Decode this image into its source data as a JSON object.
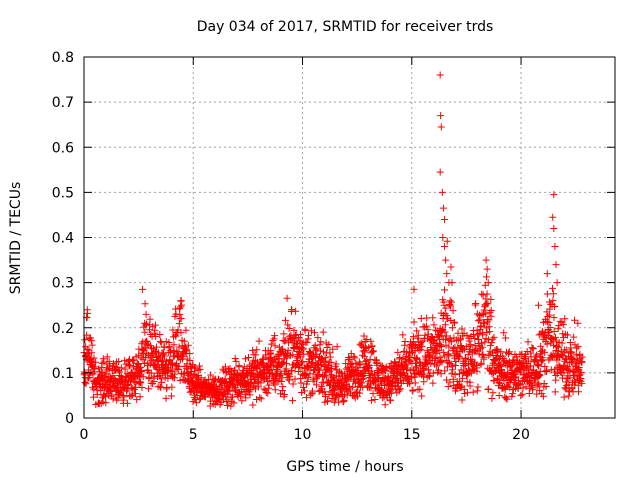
{
  "chart_data": {
    "type": "scatter",
    "title": "Day 034 of 2017, SRMTID for receiver trds",
    "xlabel": "GPS time / hours",
    "ylabel": "SRMTID / TECUs",
    "xlim": [
      0,
      24.3
    ],
    "ylim": [
      0,
      0.8
    ],
    "xticks": [
      0,
      5,
      10,
      15,
      20
    ],
    "xtick_labels": [
      "0",
      "5",
      "10",
      "15",
      "20"
    ],
    "yticks": [
      0,
      0.1,
      0.2,
      0.3,
      0.4,
      0.5,
      0.6,
      0.7,
      0.8
    ],
    "ytick_labels": [
      "0",
      "0.1",
      "0.2",
      "0.3",
      "0.4",
      "0.5",
      "0.6",
      "0.7",
      "0.8"
    ],
    "grid": true,
    "marker": "plus",
    "color": "#ff0000",
    "series": [
      {
        "name": "SRMTID",
        "baseline": [
          [
            0,
            0.13
          ],
          [
            0.1,
            0.15
          ],
          [
            0.3,
            0.12
          ],
          [
            0.5,
            0.08
          ],
          [
            1,
            0.08
          ],
          [
            2,
            0.08
          ],
          [
            2.6,
            0.1
          ],
          [
            2.8,
            0.17
          ],
          [
            3,
            0.13
          ],
          [
            3.5,
            0.11
          ],
          [
            4,
            0.12
          ],
          [
            4.4,
            0.18
          ],
          [
            4.7,
            0.12
          ],
          [
            5,
            0.07
          ],
          [
            6,
            0.06
          ],
          [
            7,
            0.08
          ],
          [
            8,
            0.1
          ],
          [
            9,
            0.12
          ],
          [
            9.6,
            0.15
          ],
          [
            10,
            0.13
          ],
          [
            11,
            0.1
          ],
          [
            11.7,
            0.07
          ],
          [
            12.5,
            0.1
          ],
          [
            13,
            0.13
          ],
          [
            13.5,
            0.08
          ],
          [
            14,
            0.08
          ],
          [
            14.5,
            0.1
          ],
          [
            15,
            0.12
          ],
          [
            15.5,
            0.14
          ],
          [
            16,
            0.15
          ],
          [
            16.3,
            0.16
          ],
          [
            16.8,
            0.2
          ],
          [
            17,
            0.13
          ],
          [
            17.5,
            0.12
          ],
          [
            18,
            0.16
          ],
          [
            18.4,
            0.22
          ],
          [
            18.7,
            0.14
          ],
          [
            19,
            0.1
          ],
          [
            20,
            0.1
          ],
          [
            20.7,
            0.11
          ],
          [
            21,
            0.15
          ],
          [
            21.4,
            0.18
          ],
          [
            21.8,
            0.13
          ],
          [
            22.5,
            0.11
          ],
          [
            22.8,
            0.1
          ]
        ],
        "spikes": [
          [
            0.15,
            0.24
          ],
          [
            2.68,
            0.285
          ],
          [
            4.45,
            0.26
          ],
          [
            9.5,
            0.24
          ],
          [
            15.1,
            0.285
          ],
          [
            16.3,
            0.76
          ],
          [
            16.32,
            0.67
          ],
          [
            16.35,
            0.645
          ],
          [
            16.3,
            0.545
          ],
          [
            16.4,
            0.5
          ],
          [
            16.45,
            0.465
          ],
          [
            16.5,
            0.44
          ],
          [
            16.42,
            0.4
          ],
          [
            16.5,
            0.38
          ],
          [
            16.55,
            0.35
          ],
          [
            16.6,
            0.32
          ],
          [
            16.7,
            0.3
          ],
          [
            18.4,
            0.35
          ],
          [
            18.45,
            0.33
          ],
          [
            18.5,
            0.3
          ],
          [
            21.5,
            0.495
          ],
          [
            21.45,
            0.445
          ],
          [
            21.5,
            0.42
          ],
          [
            21.55,
            0.38
          ],
          [
            21.6,
            0.34
          ],
          [
            21.65,
            0.3
          ],
          [
            21.2,
            0.32
          ],
          [
            20.8,
            0.25
          ],
          [
            22.0,
            0.22
          ],
          [
            22.6,
            0.21
          ],
          [
            17.0,
            0.06
          ],
          [
            17.3,
            0.04
          ],
          [
            18.0,
            0.06
          ],
          [
            19.0,
            0.05
          ],
          [
            14.0,
            0.04
          ],
          [
            6.0,
            0.03
          ],
          [
            11.5,
            0.04
          ]
        ]
      }
    ]
  }
}
